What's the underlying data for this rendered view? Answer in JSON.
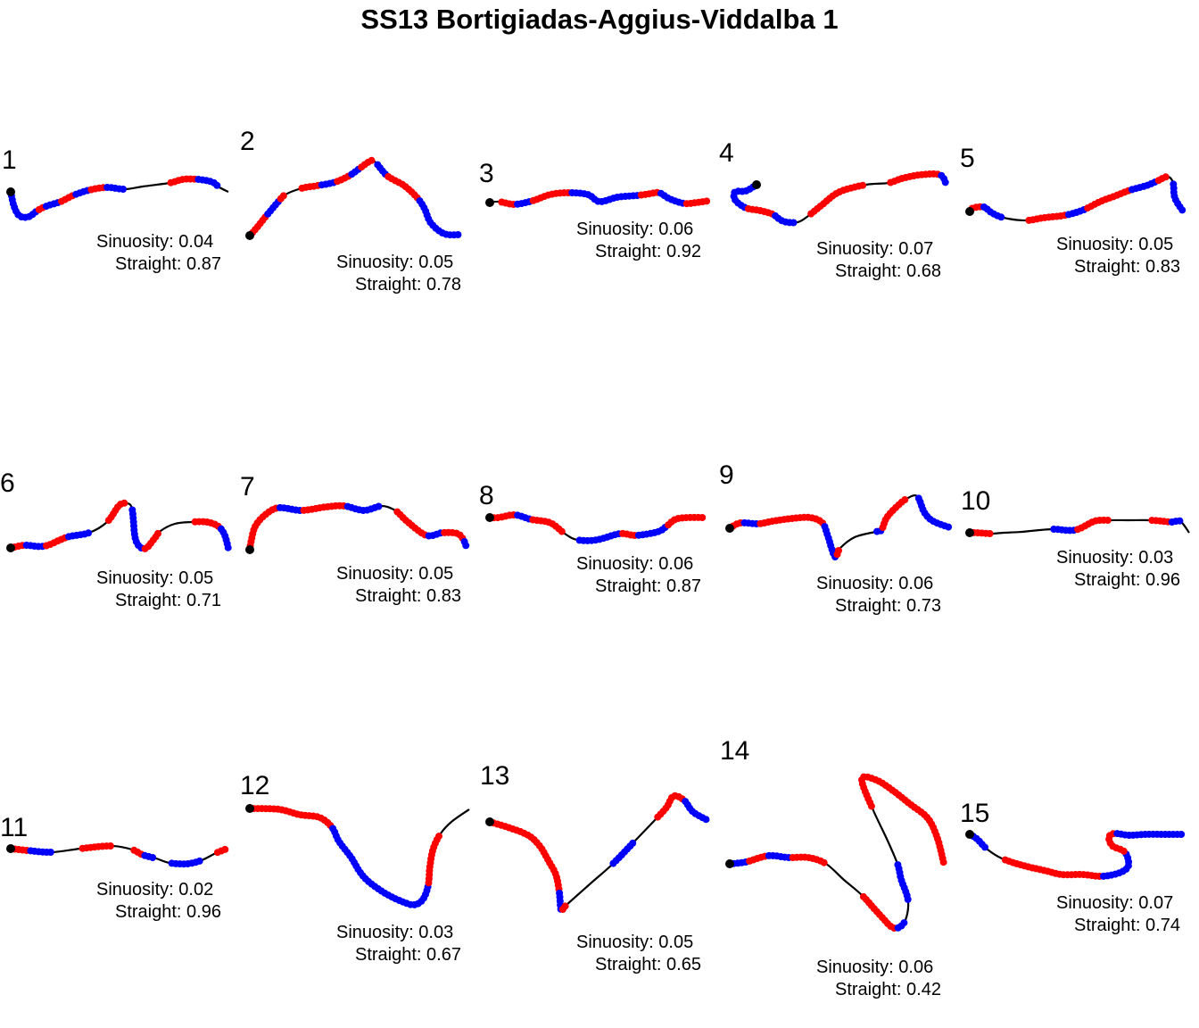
{
  "title": "SS13 Bortigiadas-Aggius-Viddalba 1",
  "colors": {
    "line": "#000000",
    "start": "#000000",
    "red": "#ff0000",
    "blue": "#0000ff"
  },
  "chart_data": {
    "type": "scatter",
    "panels": [
      {
        "label": "1",
        "sinuosity": "Sinuosity: 0.04",
        "straight": "Straight: 0.87"
      },
      {
        "label": "2",
        "sinuosity": "Sinuosity: 0.05",
        "straight": "Straight: 0.78"
      },
      {
        "label": "3",
        "sinuosity": "Sinuosity: 0.06",
        "straight": "Straight: 0.92"
      },
      {
        "label": "4",
        "sinuosity": "Sinuosity: 0.07",
        "straight": "Straight: 0.68"
      },
      {
        "label": "5",
        "sinuosity": "Sinuosity: 0.05",
        "straight": "Straight: 0.83"
      },
      {
        "label": "6",
        "sinuosity": "Sinuosity: 0.05",
        "straight": "Straight: 0.71"
      },
      {
        "label": "7",
        "sinuosity": "Sinuosity: 0.05",
        "straight": "Straight: 0.83"
      },
      {
        "label": "8",
        "sinuosity": "Sinuosity: 0.06",
        "straight": "Straight: 0.87"
      },
      {
        "label": "9",
        "sinuosity": "Sinuosity: 0.06",
        "straight": "Straight: 0.73"
      },
      {
        "label": "10",
        "sinuosity": "Sinuosity: 0.03",
        "straight": "Straight: 0.96"
      },
      {
        "label": "11",
        "sinuosity": "Sinuosity: 0.02",
        "straight": "Straight: 0.96"
      },
      {
        "label": "12",
        "sinuosity": "Sinuosity: 0.03",
        "straight": "Straight: 0.67"
      },
      {
        "label": "13",
        "sinuosity": "Sinuosity: 0.05",
        "straight": "Straight: 0.65"
      },
      {
        "label": "14",
        "sinuosity": "Sinuosity: 0.06",
        "straight": "Straight: 0.42"
      },
      {
        "label": "15",
        "sinuosity": "Sinuosity: 0.07",
        "straight": "Straight: 0.74"
      }
    ]
  }
}
